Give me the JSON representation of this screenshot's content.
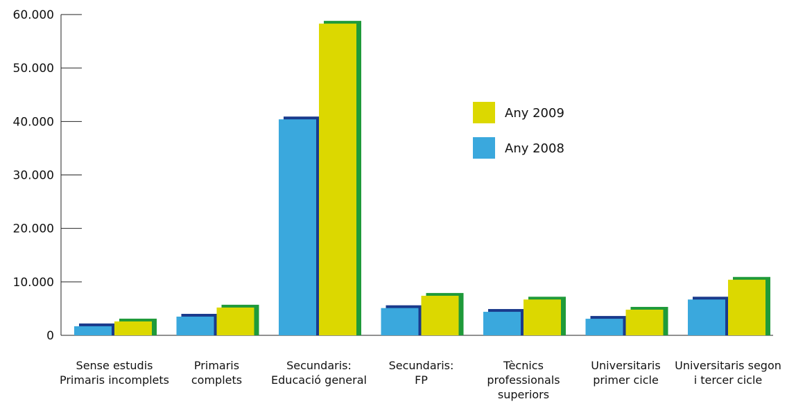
{
  "chart_data": {
    "type": "bar",
    "title": "",
    "xlabel": "",
    "ylabel": "",
    "ylim": [
      0,
      60000
    ],
    "yticks": [
      0,
      10000,
      20000,
      30000,
      40000,
      50000,
      60000
    ],
    "ytick_labels": [
      "0",
      "10.000",
      "20.000",
      "30.000",
      "40.000",
      "50.000",
      "60.000"
    ],
    "categories": [
      [
        "Sense estudis",
        "Primaris incomplets"
      ],
      [
        "Primaris",
        "complets"
      ],
      [
        "Secundaris:",
        "Educació general"
      ],
      [
        "Secundaris:",
        "FP"
      ],
      [
        "Tècnics",
        "professionals",
        "superiors"
      ],
      [
        "Universitaris",
        "primer cicle"
      ],
      [
        "Universitaris segon",
        "i tercer cicle"
      ]
    ],
    "series": [
      {
        "name": "Any 2008",
        "color": "#3aa8dd",
        "shadow_color": "#1a3a8c",
        "values": [
          1700,
          3500,
          40400,
          5100,
          4400,
          3100,
          6700
        ]
      },
      {
        "name": "Any 2009",
        "color": "#dcd800",
        "shadow_color": "#1f9a3a",
        "values": [
          2600,
          5200,
          58300,
          7400,
          6700,
          4800,
          10400
        ]
      }
    ],
    "legend": {
      "position": "right",
      "entries": [
        {
          "label": "Any 2009",
          "color": "#dcd800"
        },
        {
          "label": "Any 2008",
          "color": "#3aa8dd"
        }
      ]
    },
    "grid": false
  }
}
